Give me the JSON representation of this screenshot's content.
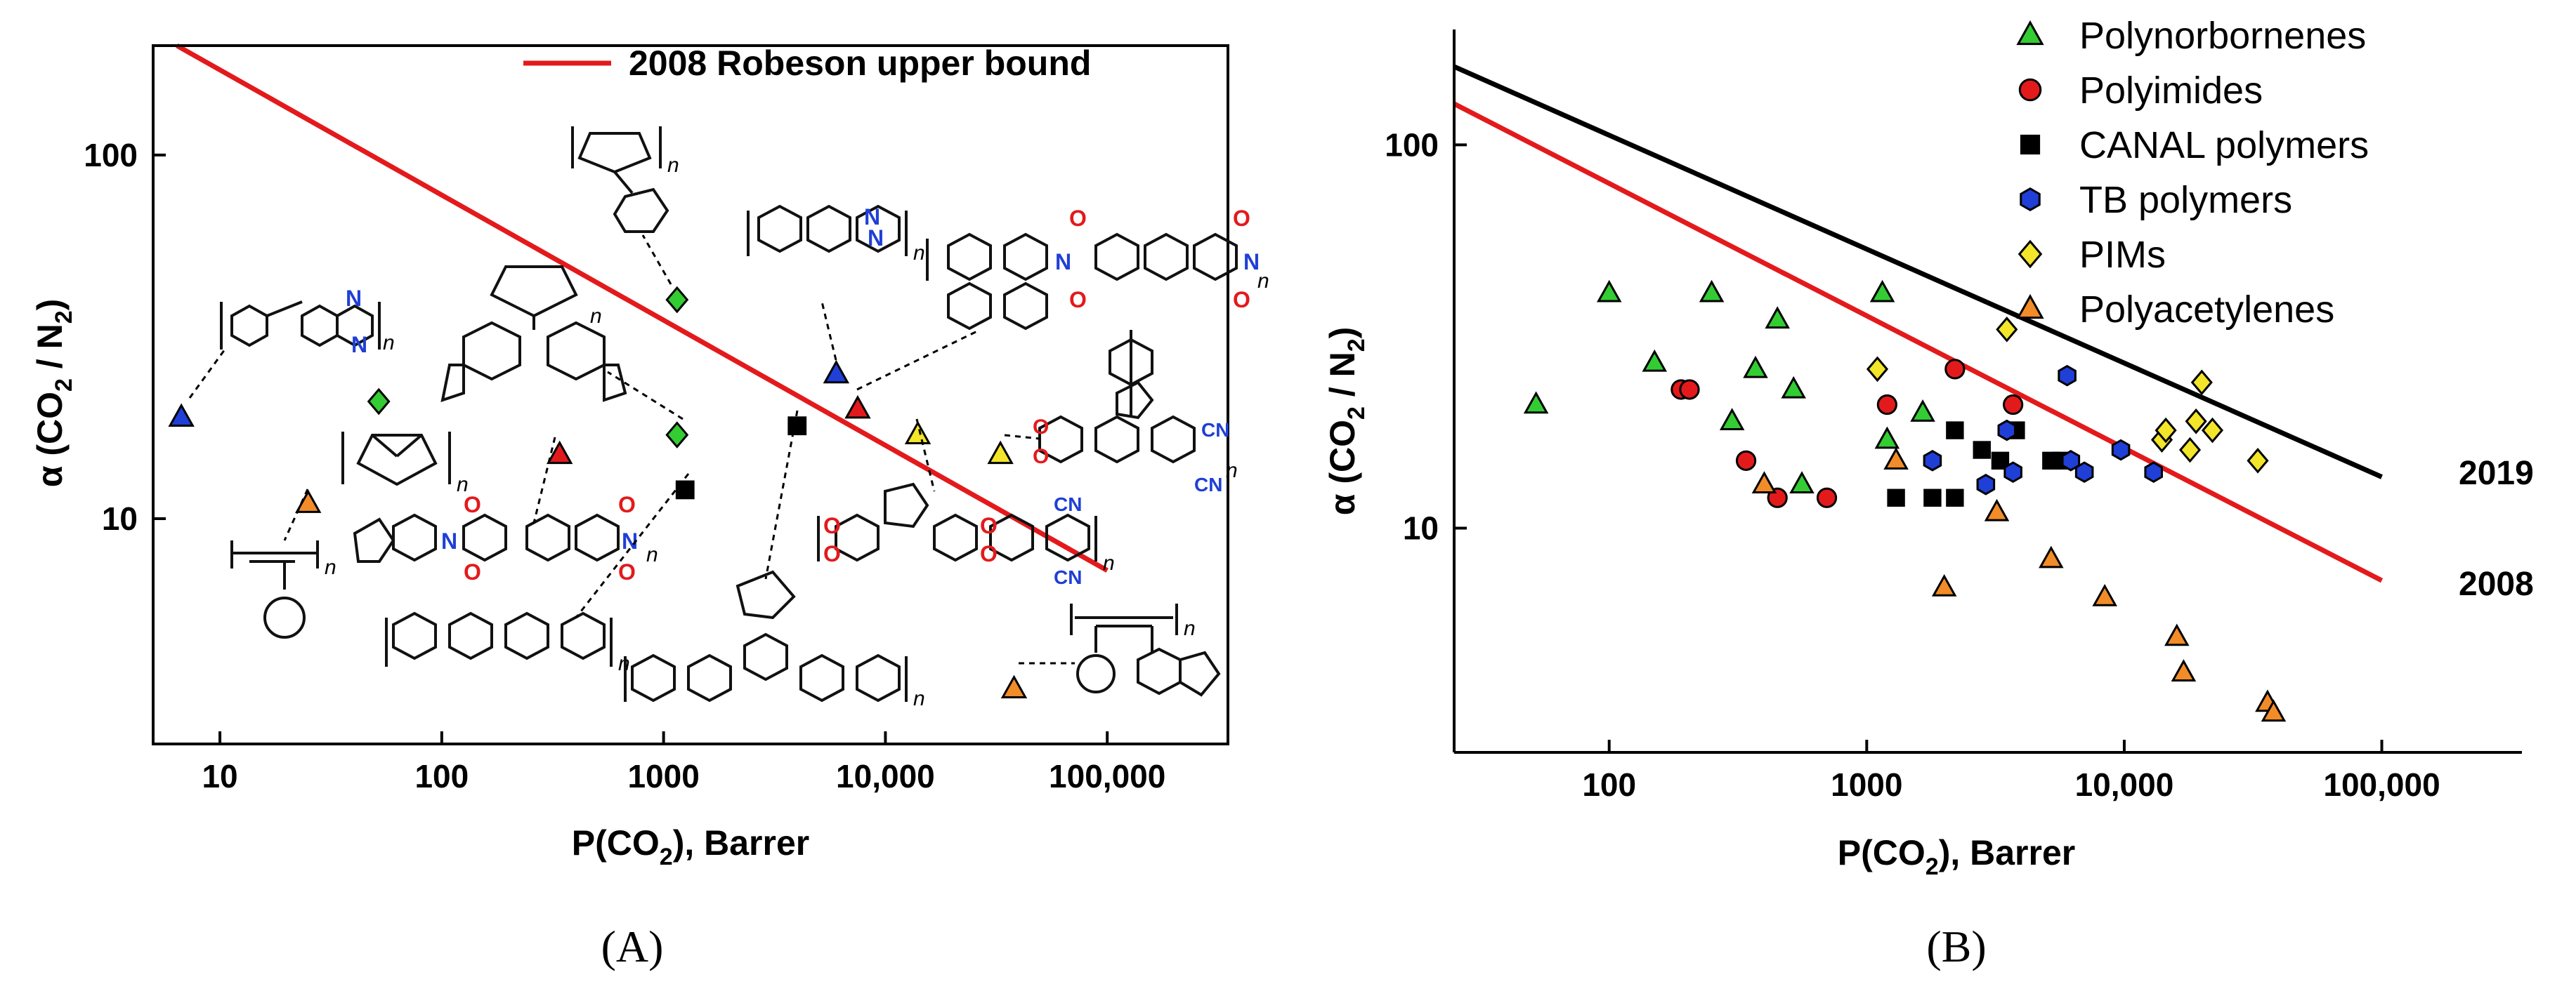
{
  "chart_data": [
    {
      "panel": "(A)",
      "type": "scatter",
      "xlabel": "P(CO2), Barrer",
      "ylabel": "α (CO2 / N2)",
      "xscale": "log",
      "yscale": "log",
      "xlim": [
        5,
        350000
      ],
      "ylim": [
        2.4,
        200
      ],
      "xticks": [
        10,
        100,
        1000,
        10000,
        100000
      ],
      "xtick_labels": [
        "10",
        "100",
        "1000",
        "10,000",
        "100,000"
      ],
      "yticks": [
        10,
        100
      ],
      "ytick_labels": [
        "10",
        "100"
      ],
      "legend_placement": "top",
      "series": [
        {
          "name": "2008 Robeson upper bound",
          "kind": "line",
          "color": "#e31a1c",
          "x": [
            6.4,
            100000
          ],
          "y": [
            200,
            7.2
          ]
        }
      ],
      "points": [
        {
          "x": 6.7,
          "y": 19,
          "shape": "triangle",
          "color": "#1f3fd6"
        },
        {
          "x": 25,
          "y": 11,
          "shape": "triangle",
          "color": "#f28c28"
        },
        {
          "x": 52,
          "y": 21,
          "shape": "diamond",
          "color": "#33cc33"
        },
        {
          "x": 340,
          "y": 15,
          "shape": "triangle",
          "color": "#e31a1c"
        },
        {
          "x": 1150,
          "y": 40,
          "shape": "diamond",
          "color": "#33cc33"
        },
        {
          "x": 1150,
          "y": 17,
          "shape": "diamond",
          "color": "#33cc33"
        },
        {
          "x": 1250,
          "y": 12,
          "shape": "square",
          "color": "#000000"
        },
        {
          "x": 4000,
          "y": 18,
          "shape": "square",
          "color": "#000000"
        },
        {
          "x": 6000,
          "y": 25,
          "shape": "triangle",
          "color": "#1f3fd6"
        },
        {
          "x": 7500,
          "y": 20,
          "shape": "triangle",
          "color": "#e31a1c"
        },
        {
          "x": 14000,
          "y": 17,
          "shape": "triangle",
          "color": "#f2e52a"
        },
        {
          "x": 33000,
          "y": 15,
          "shape": "triangle",
          "color": "#f2e52a"
        },
        {
          "x": 38000,
          "y": 3.4,
          "shape": "triangle",
          "color": "#f28c28"
        }
      ],
      "structure_labels": {
        "repeat": "n",
        "cyano": "CN",
        "oxygen": "O",
        "nitrogen": "N"
      }
    },
    {
      "panel": "(B)",
      "type": "scatter",
      "xlabel": "P(CO2), Barrer",
      "ylabel": "α (CO2 / N2)",
      "xscale": "log",
      "yscale": "log",
      "xlim": [
        25,
        350000
      ],
      "ylim": [
        2.6,
        200
      ],
      "xticks": [
        100,
        1000,
        10000,
        100000
      ],
      "xtick_labels": [
        "100",
        "1000",
        "10,000",
        "100,000"
      ],
      "yticks": [
        10,
        100
      ],
      "ytick_labels": [
        "10",
        "100"
      ],
      "legend_placement": "top-right",
      "upper_bounds": [
        {
          "label": "2019",
          "color": "#000000",
          "x": [
            25,
            100000
          ],
          "y": [
            160,
            13.6
          ]
        },
        {
          "label": "2008",
          "color": "#e31a1c",
          "x": [
            25,
            100000
          ],
          "y": [
            128,
            7.3
          ]
        }
      ],
      "series": [
        {
          "name": "Polynorbornenes",
          "shape": "triangle",
          "color": "#33cc33",
          "points": [
            [
              52,
              21
            ],
            [
              100,
              41
            ],
            [
              150,
              27
            ],
            [
              250,
              41
            ],
            [
              300,
              19
            ],
            [
              370,
              26
            ],
            [
              450,
              35
            ],
            [
              520,
              23
            ],
            [
              560,
              13
            ],
            [
              1150,
              41
            ],
            [
              1200,
              17
            ],
            [
              1650,
              20
            ]
          ]
        },
        {
          "name": "Polyimides",
          "shape": "circle",
          "color": "#e31a1c",
          "points": [
            [
              190,
              23
            ],
            [
              205,
              23
            ],
            [
              340,
              15
            ],
            [
              450,
              12
            ],
            [
              700,
              12
            ],
            [
              1200,
              21
            ],
            [
              2200,
              26
            ],
            [
              3700,
              21
            ]
          ]
        },
        {
          "name": "CANAL polymers",
          "shape": "square",
          "color": "#000000",
          "points": [
            [
              1300,
              12
            ],
            [
              1800,
              12
            ],
            [
              2200,
              12
            ],
            [
              2200,
              18
            ],
            [
              2800,
              16
            ],
            [
              3300,
              15
            ],
            [
              3800,
              18
            ],
            [
              5200,
              15
            ],
            [
              5700,
              15
            ]
          ]
        },
        {
          "name": "TB polymers",
          "shape": "hexagon",
          "color": "#1f3fd6",
          "points": [
            [
              1800,
              15
            ],
            [
              2900,
              13
            ],
            [
              3500,
              18
            ],
            [
              3700,
              14
            ],
            [
              6000,
              25
            ],
            [
              6200,
              15
            ],
            [
              7000,
              14
            ],
            [
              9700,
              16
            ],
            [
              13000,
              14
            ]
          ]
        },
        {
          "name": "PIMs",
          "shape": "diamond",
          "color": "#f2e52a",
          "points": [
            [
              1100,
              26
            ],
            [
              3500,
              33
            ],
            [
              14000,
              17
            ],
            [
              14500,
              18
            ],
            [
              18000,
              16
            ],
            [
              19000,
              19
            ],
            [
              20000,
              24
            ],
            [
              22000,
              18
            ],
            [
              33000,
              15
            ]
          ]
        },
        {
          "name": "Polyacetylenes",
          "shape": "triangle",
          "color": "#f28c28",
          "points": [
            [
              400,
              13
            ],
            [
              1300,
              15
            ],
            [
              2000,
              7
            ],
            [
              3200,
              11
            ],
            [
              5200,
              8.3
            ],
            [
              8400,
              6.6
            ],
            [
              16000,
              5.2
            ],
            [
              17000,
              4.2
            ],
            [
              36000,
              3.5
            ],
            [
              38000,
              3.3
            ]
          ]
        }
      ]
    }
  ],
  "legend_a": {
    "label": "2008 Robeson upper bound"
  },
  "panel_a": {
    "label": "(A)",
    "xlabel_main": "P(CO",
    "xlabel_sub": "2",
    "xlabel_tail": "), Barrer",
    "ylabel_main": "α (CO",
    "ylabel_sub1": "2",
    "ylabel_mid": " / N",
    "ylabel_sub2": "2",
    "ylabel_tail": ")"
  },
  "panel_b": {
    "label": "(B)",
    "xlabel_main": "P(CO",
    "xlabel_sub": "2",
    "xlabel_tail": "), Barrer",
    "ylabel_main": "α (CO",
    "ylabel_sub1": "2",
    "ylabel_mid": " / N",
    "ylabel_sub2": "2",
    "ylabel_tail": ")"
  },
  "colors": {
    "red": "#e31a1c",
    "black": "#000000",
    "green": "#33cc33",
    "blue": "#1f3fd6",
    "yellow": "#f2e52a",
    "orange": "#f28c28"
  }
}
